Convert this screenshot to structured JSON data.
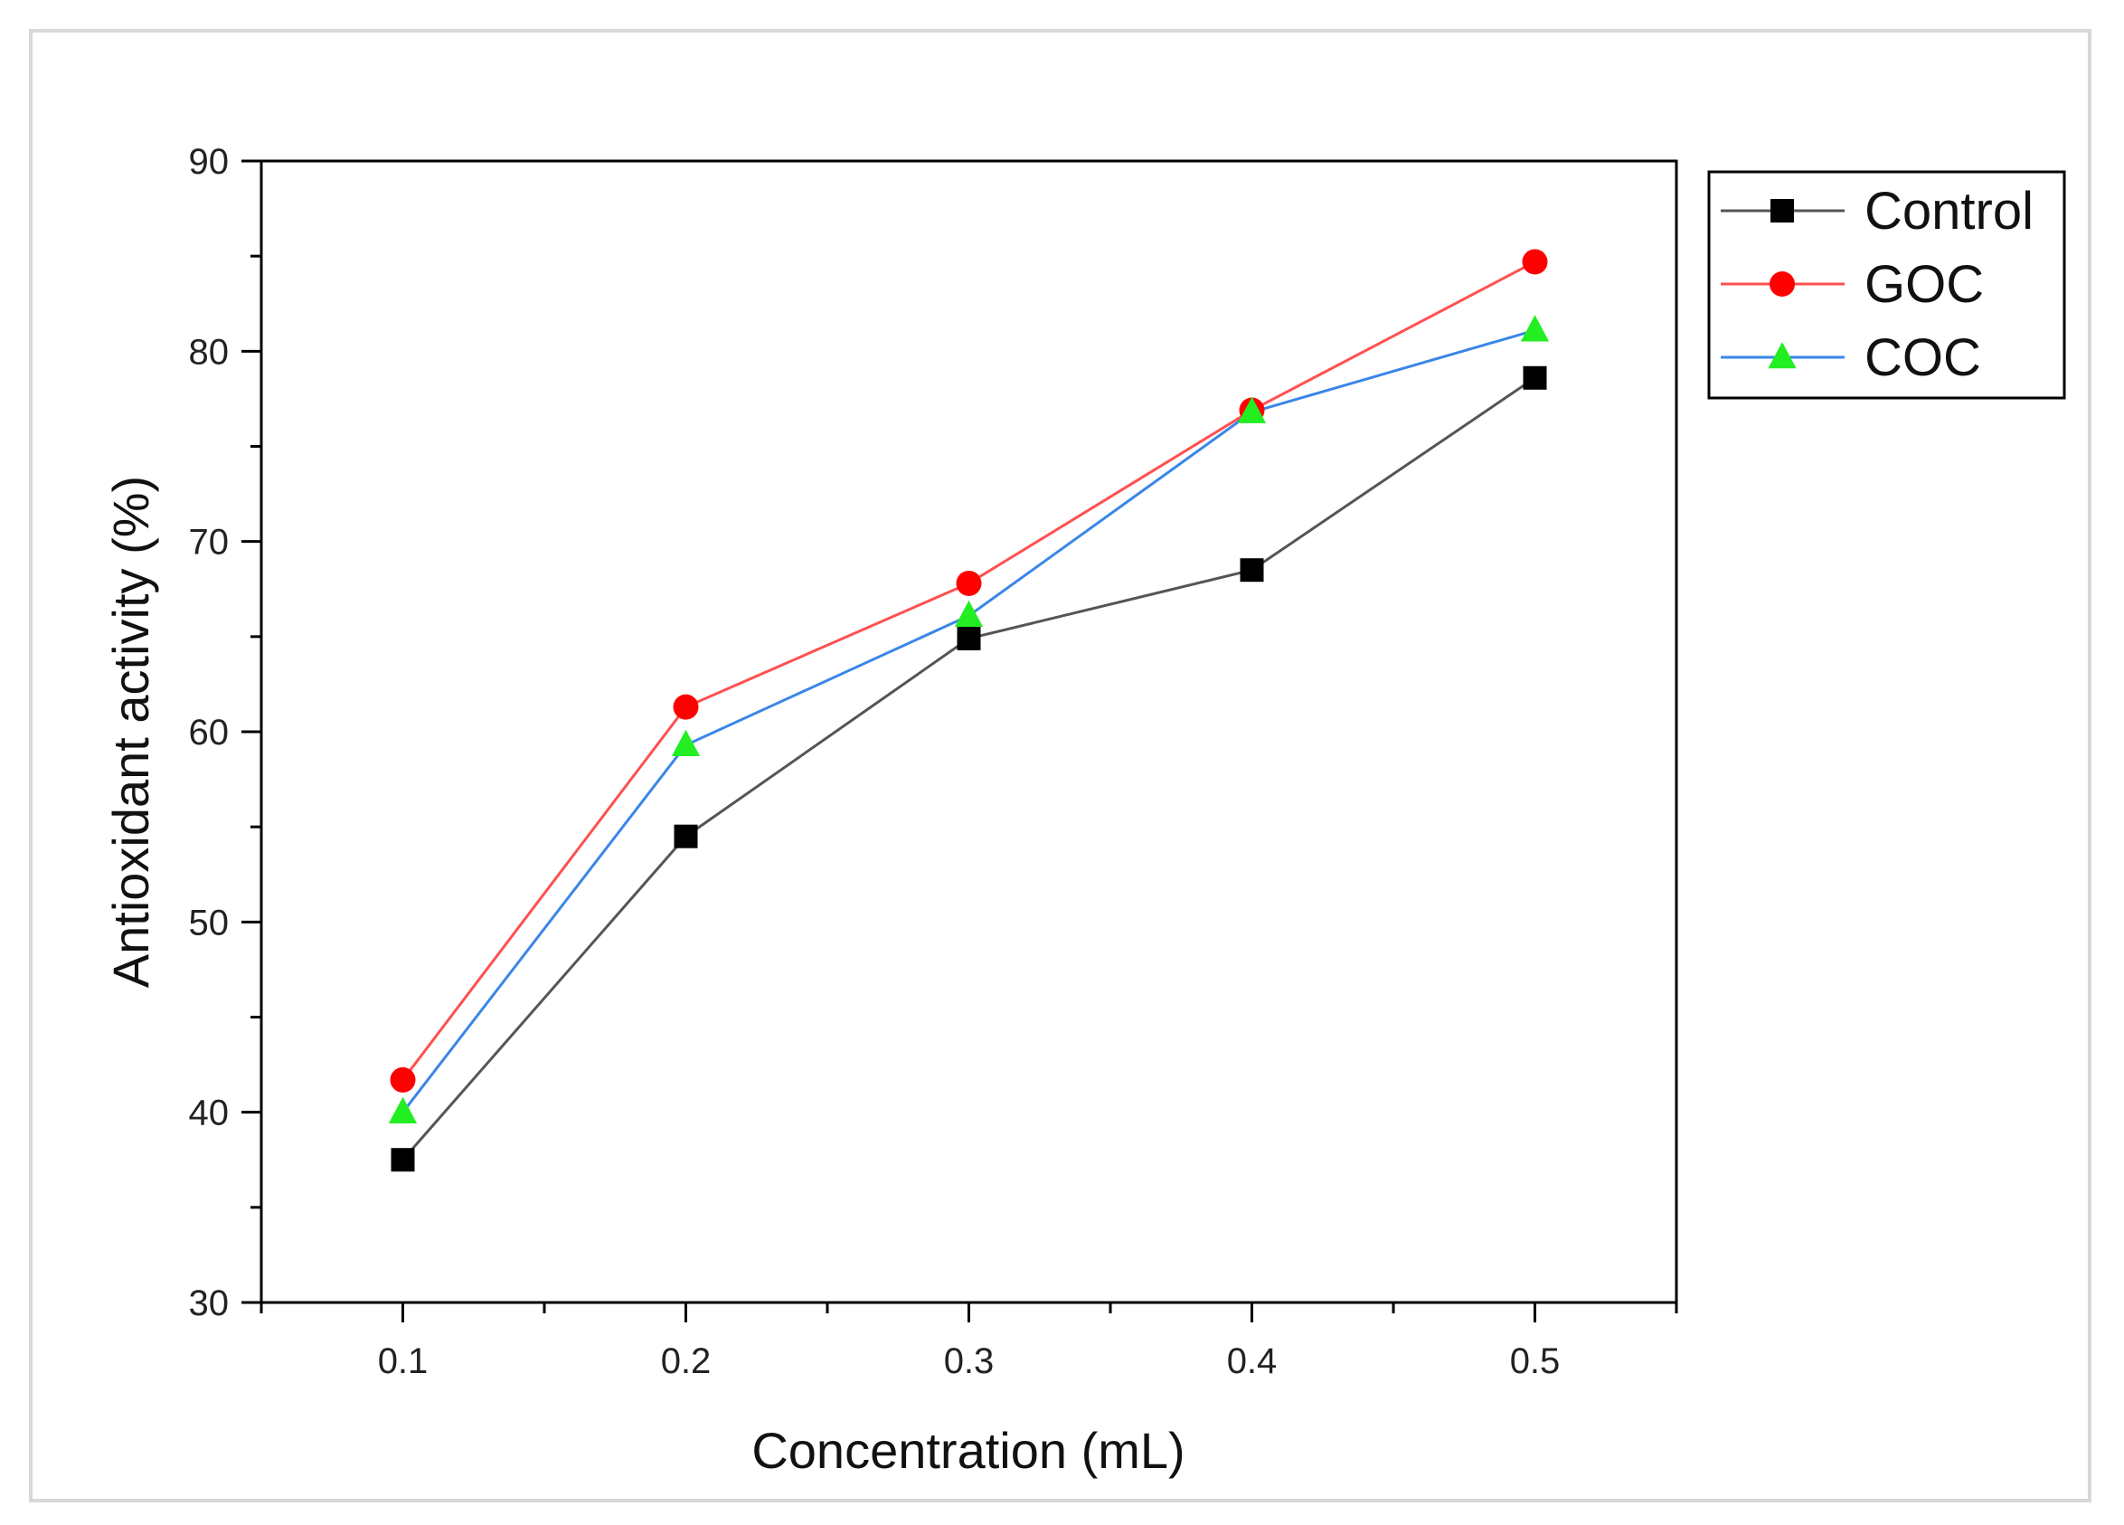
{
  "chart_data": {
    "type": "line",
    "title": "",
    "xlabel": "Concentration (mL)",
    "ylabel": "Antioxidant activity (%)",
    "x": [
      0.1,
      0.2,
      0.3,
      0.4,
      0.5
    ],
    "x_tick_labels": [
      "0.1",
      "0.2",
      "0.3",
      "0.4",
      "0.5"
    ],
    "xlim": [
      0.05,
      0.55
    ],
    "ylim": [
      30,
      90
    ],
    "y_ticks": [
      30,
      40,
      50,
      60,
      70,
      80,
      90
    ],
    "y_tick_labels": [
      "30",
      "40",
      "50",
      "60",
      "70",
      "80",
      "90"
    ],
    "grid": false,
    "legend_position": "top-right",
    "series": [
      {
        "name": "Control",
        "color": "#000000",
        "line_color": "#555555",
        "marker": "square",
        "values": [
          37.5,
          54.5,
          64.9,
          68.5,
          78.6
        ]
      },
      {
        "name": "GOC",
        "color": "#ff0000",
        "line_color": "#ff5050",
        "marker": "circle",
        "values": [
          41.7,
          61.3,
          67.8,
          76.9,
          84.7
        ]
      },
      {
        "name": "COC",
        "color": "#22ee22",
        "line_color": "#3a86e8",
        "marker": "triangle",
        "values": [
          40.0,
          59.3,
          66.1,
          76.8,
          81.1
        ]
      }
    ]
  }
}
